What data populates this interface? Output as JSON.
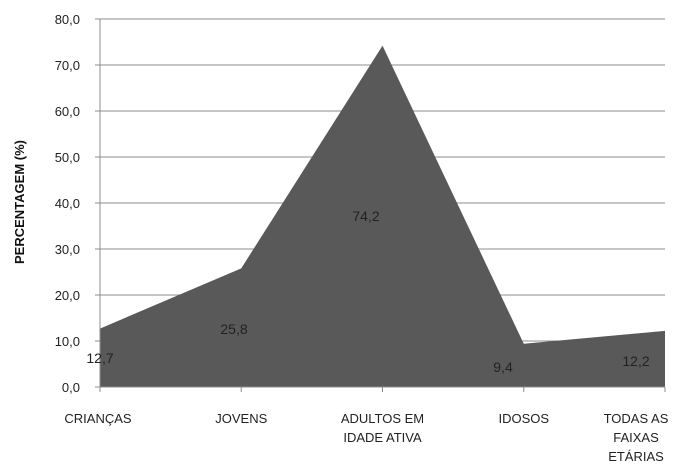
{
  "chart_data": {
    "type": "area",
    "categories": [
      [
        "CRIANÇAS"
      ],
      [
        "JOVENS"
      ],
      [
        "ADULTOS EM",
        "IDADE ATIVA"
      ],
      [
        "IDOSOS"
      ],
      [
        "TODAS AS",
        "FAIXAS",
        "ETÁRIAS"
      ]
    ],
    "values": [
      12.7,
      25.8,
      74.2,
      9.4,
      12.2
    ],
    "data_labels": [
      "12,7",
      "25,8",
      "74,2",
      "9,4",
      "12,2"
    ],
    "ylabel": "PERCENTAGEM (%)",
    "ylim": [
      0,
      80
    ],
    "yticks": [
      "0,0",
      "10,0",
      "20,0",
      "30,0",
      "40,0",
      "50,0",
      "60,0",
      "70,0",
      "80,0"
    ],
    "grid": true,
    "legend": "none",
    "colors": {
      "area": "#595959",
      "grid": "#8c8c8c",
      "axis": "#8c8c8c"
    }
  }
}
